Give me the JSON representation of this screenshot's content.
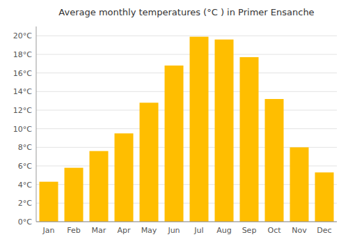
{
  "chart_data": {
    "type": "bar",
    "title": "Average monthly temperatures (°C ) in Primer Ensanche",
    "categories": [
      "Jan",
      "Feb",
      "Mar",
      "Apr",
      "May",
      "Jun",
      "Jul",
      "Aug",
      "Sep",
      "Oct",
      "Nov",
      "Dec"
    ],
    "values": [
      4.3,
      5.8,
      7.6,
      9.5,
      12.8,
      16.8,
      19.9,
      19.6,
      17.7,
      13.2,
      8.0,
      5.3
    ],
    "color": "#FFBE00",
    "ylim": [
      0,
      21
    ],
    "yticks": [
      {
        "value": 0,
        "label": "0°C"
      },
      {
        "value": 2,
        "label": "2°C"
      },
      {
        "value": 4,
        "label": "4°C"
      },
      {
        "value": 6,
        "label": "6°C"
      },
      {
        "value": 8,
        "label": "8°C"
      },
      {
        "value": 10,
        "label": "10°C"
      },
      {
        "value": 12,
        "label": "12°C"
      },
      {
        "value": 14,
        "label": "14°C"
      },
      {
        "value": 16,
        "label": "16°C"
      },
      {
        "value": 18,
        "label": "18°C"
      },
      {
        "value": 20,
        "label": "20°C"
      }
    ],
    "grid": true
  }
}
